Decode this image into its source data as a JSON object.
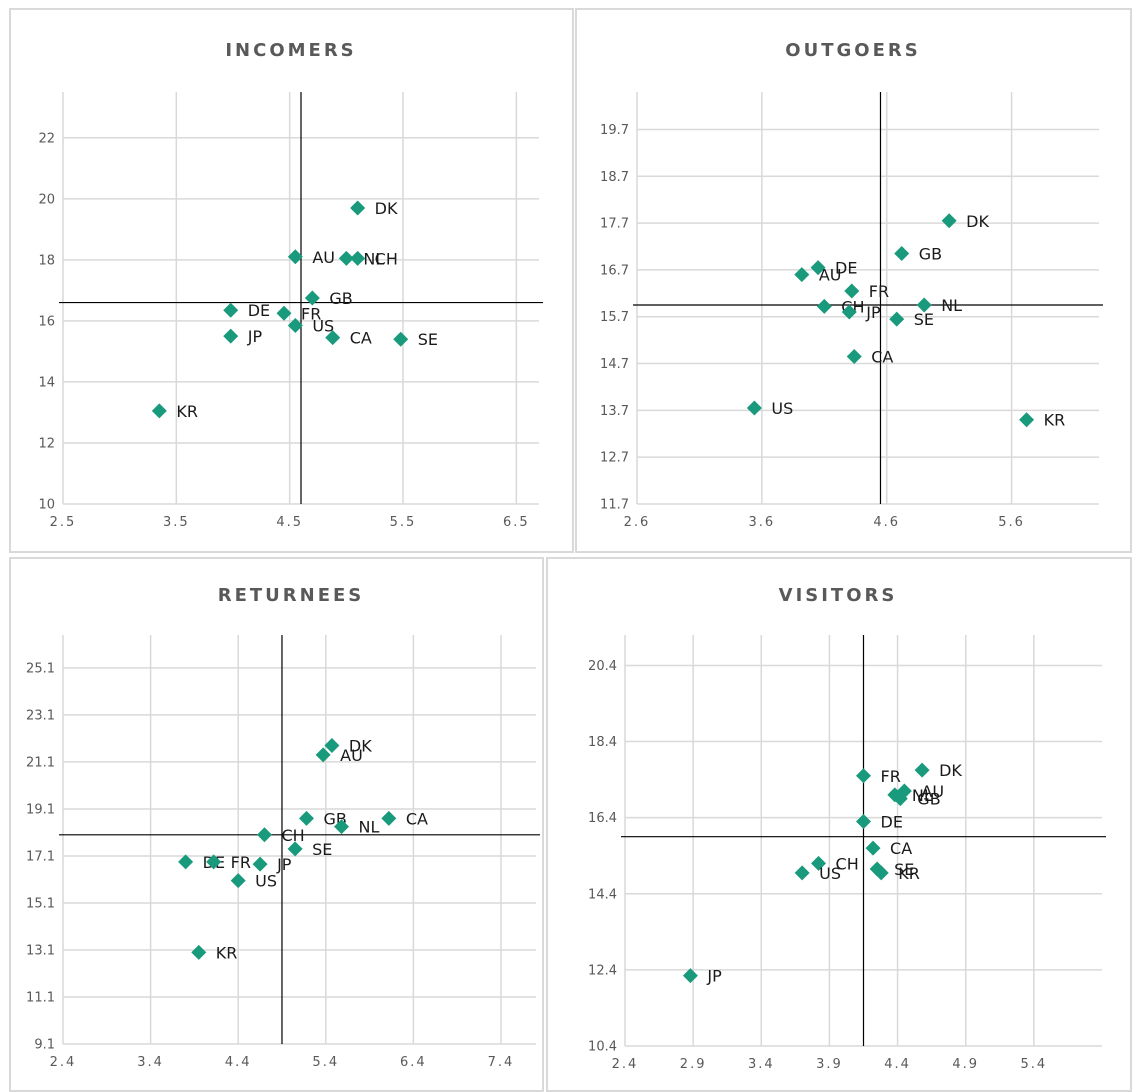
{
  "colors": {
    "marker": "#1a9a7c",
    "grid": "#d9d9d9",
    "reference_line": "#000000",
    "text": "#595959"
  },
  "chart_data": [
    {
      "type": "scatter",
      "title": "INCOMERS",
      "xlim": [
        2.5,
        6.7
      ],
      "ylim": [
        10,
        23.5
      ],
      "x_ticks": [
        "2.5",
        "3.5",
        "4.5",
        "5.5",
        "6.5"
      ],
      "y_ticks": [
        "10",
        "12",
        "14",
        "16",
        "18",
        "20",
        "22"
      ],
      "grid": true,
      "reference_lines": {
        "x": 4.6,
        "y": 16.6
      },
      "points": [
        {
          "label": "DK",
          "x": 5.1,
          "y": 19.7
        },
        {
          "label": "AU",
          "x": 4.55,
          "y": 18.1
        },
        {
          "label": "NL",
          "x": 5.0,
          "y": 18.05
        },
        {
          "label": "CH",
          "x": 5.1,
          "y": 18.05
        },
        {
          "label": "GB",
          "x": 4.7,
          "y": 16.75
        },
        {
          "label": "DE",
          "x": 3.98,
          "y": 16.35
        },
        {
          "label": "FR",
          "x": 4.45,
          "y": 16.25
        },
        {
          "label": "US",
          "x": 4.55,
          "y": 15.85
        },
        {
          "label": "JP",
          "x": 3.98,
          "y": 15.5
        },
        {
          "label": "CA",
          "x": 4.88,
          "y": 15.45
        },
        {
          "label": "SE",
          "x": 5.48,
          "y": 15.4
        },
        {
          "label": "KR",
          "x": 3.35,
          "y": 13.05
        }
      ]
    },
    {
      "type": "scatter",
      "title": "OUTGOERS",
      "xlim": [
        2.6,
        6.3
      ],
      "ylim": [
        11.7,
        20.5
      ],
      "x_ticks": [
        "2.6",
        "3.6",
        "4.6",
        "5.6"
      ],
      "y_ticks": [
        "11.7",
        "12.7",
        "13.7",
        "14.7",
        "15.7",
        "16.7",
        "17.7",
        "18.7",
        "19.7"
      ],
      "grid": true,
      "reference_lines": {
        "x": 4.55,
        "y": 15.95
      },
      "points": [
        {
          "label": "DK",
          "x": 5.1,
          "y": 17.75
        },
        {
          "label": "GB",
          "x": 4.72,
          "y": 17.05
        },
        {
          "label": "DE",
          "x": 4.05,
          "y": 16.75
        },
        {
          "label": "AU",
          "x": 3.92,
          "y": 16.6
        },
        {
          "label": "FR",
          "x": 4.32,
          "y": 16.25
        },
        {
          "label": "NL",
          "x": 4.9,
          "y": 15.95
        },
        {
          "label": "CH",
          "x": 4.1,
          "y": 15.92
        },
        {
          "label": "JP",
          "x": 4.3,
          "y": 15.8
        },
        {
          "label": "SE",
          "x": 4.68,
          "y": 15.65
        },
        {
          "label": "CA",
          "x": 4.34,
          "y": 14.85
        },
        {
          "label": "US",
          "x": 3.54,
          "y": 13.75
        },
        {
          "label": "KR",
          "x": 5.72,
          "y": 13.5
        }
      ]
    },
    {
      "type": "scatter",
      "title": "RETURNEES",
      "xlim": [
        2.4,
        7.8
      ],
      "ylim": [
        9.1,
        26.5
      ],
      "x_ticks": [
        "2.4",
        "3.4",
        "4.4",
        "5.4",
        "6.4",
        "7.4"
      ],
      "y_ticks": [
        "9.1",
        "11.1",
        "13.1",
        "15.1",
        "17.1",
        "19.1",
        "21.1",
        "23.1",
        "25.1"
      ],
      "grid": true,
      "reference_lines": {
        "x": 4.9,
        "y": 18.0
      },
      "points": [
        {
          "label": "DK",
          "x": 5.47,
          "y": 21.8
        },
        {
          "label": "AU",
          "x": 5.37,
          "y": 21.4
        },
        {
          "label": "GB",
          "x": 5.18,
          "y": 18.7
        },
        {
          "label": "NL",
          "x": 5.58,
          "y": 18.35
        },
        {
          "label": "CA",
          "x": 6.12,
          "y": 18.7
        },
        {
          "label": "CH",
          "x": 4.7,
          "y": 18.0
        },
        {
          "label": "SE",
          "x": 5.05,
          "y": 17.4
        },
        {
          "label": "DE",
          "x": 3.8,
          "y": 16.85
        },
        {
          "label": "FR",
          "x": 4.12,
          "y": 16.85
        },
        {
          "label": "JP",
          "x": 4.65,
          "y": 16.75
        },
        {
          "label": "US",
          "x": 4.4,
          "y": 16.05
        },
        {
          "label": "KR",
          "x": 3.95,
          "y": 13.0
        }
      ]
    },
    {
      "type": "scatter",
      "title": "VISITORS",
      "xlim": [
        2.4,
        5.9
      ],
      "ylim": [
        10.4,
        21.2
      ],
      "x_ticks": [
        "2.4",
        "2.9",
        "3.4",
        "3.9",
        "4.4",
        "4.9",
        "5.4"
      ],
      "y_ticks": [
        "10.4",
        "12.4",
        "14.4",
        "16.4",
        "18.4",
        "20.4"
      ],
      "grid": true,
      "reference_lines": {
        "x": 4.15,
        "y": 15.9
      },
      "points": [
        {
          "label": "DK",
          "x": 4.58,
          "y": 17.65
        },
        {
          "label": "FR",
          "x": 4.15,
          "y": 17.5
        },
        {
          "label": "AU",
          "x": 4.45,
          "y": 17.1
        },
        {
          "label": "NL",
          "x": 4.38,
          "y": 17.0
        },
        {
          "label": "GB",
          "x": 4.42,
          "y": 16.9
        },
        {
          "label": "DE",
          "x": 4.15,
          "y": 16.3
        },
        {
          "label": "CA",
          "x": 4.22,
          "y": 15.6
        },
        {
          "label": "CH",
          "x": 3.82,
          "y": 15.2
        },
        {
          "label": "SE",
          "x": 4.25,
          "y": 15.05
        },
        {
          "label": "KR",
          "x": 4.28,
          "y": 14.95
        },
        {
          "label": "US",
          "x": 3.7,
          "y": 14.95
        },
        {
          "label": "JP",
          "x": 2.88,
          "y": 12.25
        }
      ]
    }
  ]
}
